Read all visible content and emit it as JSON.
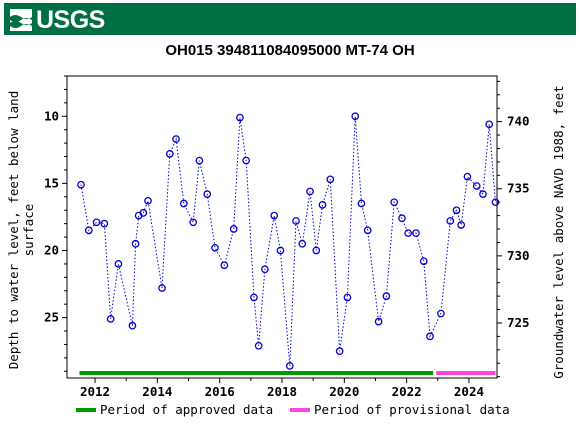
{
  "header": {
    "logo_text": "USGS",
    "brand_color": "#006f41"
  },
  "chart_data": {
    "type": "scatter",
    "title": "OH015 394811084095000 MT-74 OH",
    "ylabel_left_line1": "Depth to water level, feet below land",
    "ylabel_left_line2": "surface",
    "ylabel_right": "Groundwater level above NAVD 1988, feet",
    "x_ticks": [
      "2012",
      "2014",
      "2016",
      "2018",
      "2020",
      "2022",
      "2024"
    ],
    "y_left_ticks": [
      "10",
      "15",
      "20",
      "25"
    ],
    "y_right_ticks": [
      "740",
      "735",
      "730",
      "725"
    ],
    "xlim": [
      2011.1,
      2024.9
    ],
    "ylim_left": [
      7.0,
      29.5
    ],
    "left_right_sum": 750.4,
    "series": [
      {
        "color": "#0000cc",
        "x": [
          2011.55,
          2011.8,
          2012.05,
          2012.3,
          2012.5,
          2012.75,
          2013.2,
          2013.3,
          2013.4,
          2013.55,
          2013.7,
          2014.15,
          2014.4,
          2014.6,
          2014.85,
          2015.15,
          2015.35,
          2015.6,
          2015.85,
          2016.15,
          2016.45,
          2016.65,
          2016.85,
          2017.1,
          2017.25,
          2017.45,
          2017.75,
          2017.95,
          2018.25,
          2018.45,
          2018.65,
          2018.9,
          2019.1,
          2019.3,
          2019.55,
          2019.85,
          2020.1,
          2020.35,
          2020.55,
          2020.75,
          2021.1,
          2021.35,
          2021.6,
          2021.85,
          2022.05,
          2022.3,
          2022.55,
          2022.75,
          2023.1,
          2023.4,
          2023.6,
          2023.75,
          2023.95,
          2024.25,
          2024.45,
          2024.65,
          2024.85
        ],
        "y": [
          15.1,
          18.5,
          17.9,
          18.0,
          25.1,
          21.0,
          25.6,
          19.5,
          17.4,
          17.2,
          16.3,
          22.8,
          12.8,
          11.7,
          16.5,
          17.9,
          13.3,
          15.8,
          19.8,
          21.1,
          18.4,
          10.1,
          13.3,
          23.5,
          27.1,
          21.4,
          17.4,
          20.0,
          28.6,
          17.8,
          19.5,
          15.6,
          20.0,
          16.6,
          14.7,
          27.5,
          23.5,
          10.0,
          16.5,
          18.5,
          25.3,
          23.4,
          16.4,
          17.6,
          18.7,
          18.7,
          20.8,
          26.4,
          24.7,
          17.8,
          17.0,
          18.1,
          14.5,
          15.2,
          15.8,
          10.6,
          16.4
        ]
      }
    ],
    "periods": [
      {
        "label": "Period of approved data",
        "color": "#009900",
        "start": 2011.5,
        "end": 2022.85
      },
      {
        "label": "Period of provisional data",
        "color": "#ff44dd",
        "start": 2022.95,
        "end": 2024.85
      }
    ],
    "grid": false,
    "legend_placement": "bottom"
  }
}
